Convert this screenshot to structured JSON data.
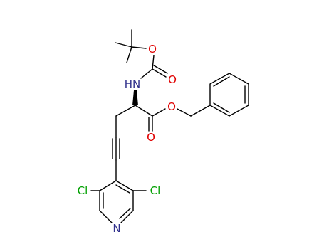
{
  "atom_labels": [
    "O",
    "HN",
    "O",
    "O",
    "O",
    "Cl",
    "Cl",
    "N"
  ]
}
